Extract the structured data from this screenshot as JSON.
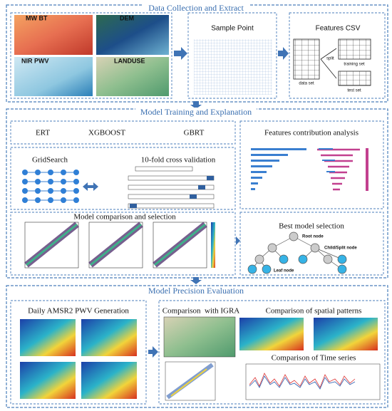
{
  "data_collection": {
    "title": "Data Collection and Extract",
    "inputs": [
      "MW BT",
      "DEM",
      "NIR PWV",
      "LANDUSE"
    ],
    "sample_point": "Sample Point",
    "features_csv": {
      "title": "Features CSV",
      "data_set": "data set",
      "split": "split",
      "training_set": "training set",
      "test_set": "test set"
    }
  },
  "model_training": {
    "title": "Model Training and Explanation",
    "models": [
      "ERT",
      "XGBOOST",
      "GBRT"
    ],
    "grid_search": "GridSearch",
    "cross_validation": "10-fold cross validation",
    "comparison": "Model comparison and selection",
    "features": "Features contribution analysis",
    "best_model": {
      "title": "Best model selection",
      "root": "Root node",
      "child": "Child/Split node",
      "leaf": "Leaf node"
    }
  },
  "precision": {
    "title": "Model Precision Evaluation",
    "generation": "Daily AMSR2 PWV Generation",
    "igra": "Comparison  with IGRA",
    "spatial": "Comparison of spatial patterns",
    "time_series": "Comparison of Time series"
  }
}
